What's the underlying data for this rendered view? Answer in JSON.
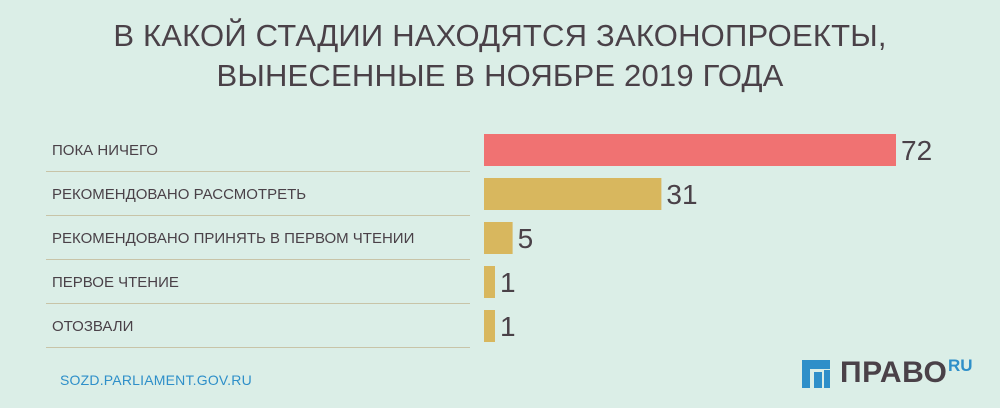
{
  "title": {
    "line1": "В КАКОЙ СТАДИИ НАХОДЯТСЯ ЗАКОНОПРОЕКТЫ,",
    "line2": "ВЫНЕСЕННЫЕ В НОЯБРЕ 2019 ГОДА"
  },
  "chart_data": {
    "type": "bar",
    "orientation": "horizontal",
    "title": "В КАКОЙ СТАДИИ НАХОДЯТСЯ ЗАКОНОПРОЕКТЫ, ВЫНЕСЕННЫЕ В НОЯБРЕ 2019 ГОДА",
    "categories": [
      "ПОКА НИЧЕГО",
      "РЕКОМЕНДОВАНО РАССМОТРЕТЬ",
      "РЕКОМЕНДОВАНО ПРИНЯТЬ В ПЕРВОМ ЧТЕНИИ",
      "ПЕРВОЕ ЧТЕНИЕ",
      "ОТОЗВАЛИ"
    ],
    "values": [
      72,
      31,
      5,
      1,
      1
    ],
    "bar_colors": [
      "#f07272",
      "#d8b75e",
      "#d8b75e",
      "#d8b75e",
      "#d8b75e"
    ],
    "data_labels": true,
    "grid": false
  },
  "source": "SOZD.PARLIAMENT.GOV.RU",
  "logo": {
    "text": "ПРАВО",
    "suffix": "RU",
    "icon": "pravo-logo-icon"
  },
  "colors": {
    "background": "#dbeee7",
    "text": "#4a4148",
    "accent": "#2e8fc9",
    "divider": "#c8c4a8"
  }
}
